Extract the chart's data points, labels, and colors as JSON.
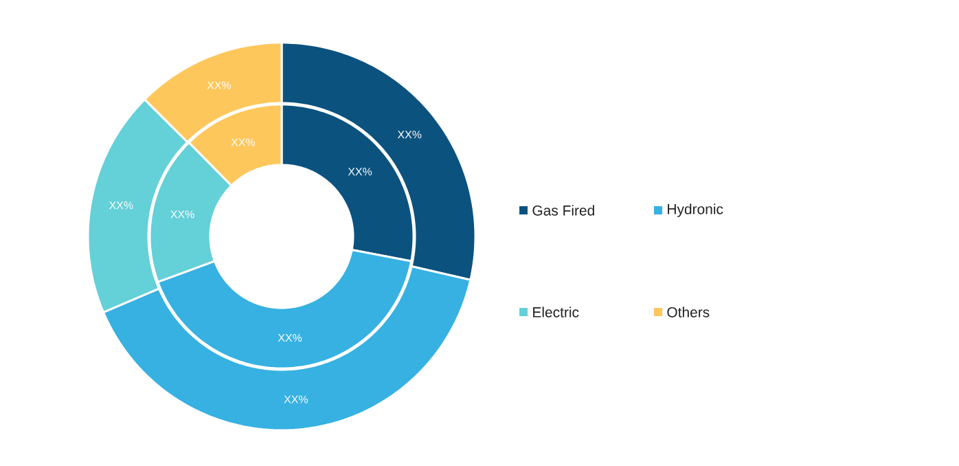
{
  "chart_data": {
    "type": "donut",
    "categories": [
      "Gas Fired",
      "Hydronic",
      "Electric",
      "Others"
    ],
    "colors": [
      "#0b527f",
      "#36b1e2",
      "#64d0d8",
      "#fec75c"
    ],
    "series": [
      {
        "values": [
          28,
          41.4,
          18.2,
          12.4
        ],
        "value_labels": [
          "XX%",
          "XX%",
          "XX%",
          "XX%"
        ]
      },
      {
        "values": [
          28.6,
          40,
          18.9,
          12.5
        ],
        "value_labels": [
          "XX%",
          "XX%",
          "XX%",
          "XX%"
        ]
      }
    ],
    "legend": "right"
  }
}
